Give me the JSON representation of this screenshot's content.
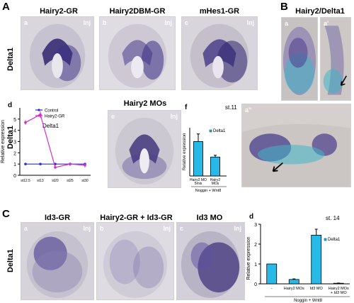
{
  "panels": {
    "A": {
      "letter": "A",
      "titles": [
        "Hairy2-GR",
        "Hairy2DBM-GR",
        "mHes1-GR"
      ],
      "subs": [
        "a",
        "b",
        "c"
      ],
      "inj": "Inj",
      "row_label": "Delta1",
      "row2_row_label": "Delta1",
      "e": {
        "title": "Hairy2 MOs",
        "sub": "e",
        "inj": "Inj"
      }
    },
    "B": {
      "letter": "B",
      "title": "Hairy2/Delta1",
      "subs": [
        "a",
        "a'",
        "a''"
      ]
    },
    "C": {
      "letter": "C",
      "titles": [
        "Id3-GR",
        "Hairy2-GR + Id3-GR",
        "Id3 MO"
      ],
      "subs": [
        "a",
        "b",
        "c"
      ],
      "inj": "Inj",
      "row_label": "Delta1"
    }
  },
  "colors": {
    "embryo_bg": "#c9c4cf",
    "stain": "#4a3d8c",
    "beta_gal": "#3fb6c8",
    "bar": "#29b9e6",
    "control_line": "#2b2bd6",
    "hairy_line": "#d62bd1"
  },
  "chart_data": [
    {
      "id": "Ad",
      "type": "line",
      "panel_letter": "d",
      "title": "Delta1",
      "ylabel": "Relative expression",
      "ylim": [
        0,
        6
      ],
      "yticks": [
        "0",
        "1",
        "2",
        "3",
        "4",
        "5"
      ],
      "x": [
        "st12.5",
        "st13",
        "st20",
        "st25",
        "st30"
      ],
      "legend": [
        "Control",
        "Hairy2-GR"
      ],
      "series": [
        {
          "name": "Control",
          "values": [
            1,
            1,
            1,
            1,
            1
          ]
        },
        {
          "name": "Hairy2-GR",
          "values": [
            4.7,
            5.4,
            0.7,
            1.0,
            0.9
          ],
          "errors": [
            0.2,
            0.3,
            0.1,
            0.15,
            0.2
          ]
        }
      ]
    },
    {
      "id": "Af",
      "type": "bar",
      "panel_letter": "f",
      "stage": "st.11",
      "ylabel": "Relative expression",
      "ylim": [
        0,
        1.4
      ],
      "legend": "Delta1",
      "categories": [
        "Hairy2 MO 5mis",
        "Hairy2 MOs"
      ],
      "values": [
        1.0,
        0.55
      ],
      "errors": [
        0.22,
        0.05
      ],
      "footer": "Noggin + Wnt8"
    },
    {
      "id": "Cd",
      "type": "bar",
      "panel_letter": "d",
      "stage": "st. 14",
      "ylabel": "Relative expression",
      "ylim": [
        0,
        3
      ],
      "yticks": [
        "0",
        "1",
        "2",
        "3"
      ],
      "legend": "Delta1",
      "categories": [
        "-",
        "Hairy2 MOs",
        "Id3 MO",
        "Hairy2 MOs + Id3 MO"
      ],
      "values": [
        1.0,
        0.22,
        2.45,
        0.03
      ],
      "errors": [
        0,
        0.03,
        0.3,
        0.01
      ],
      "footer": "Noggin + Wnt8"
    }
  ]
}
